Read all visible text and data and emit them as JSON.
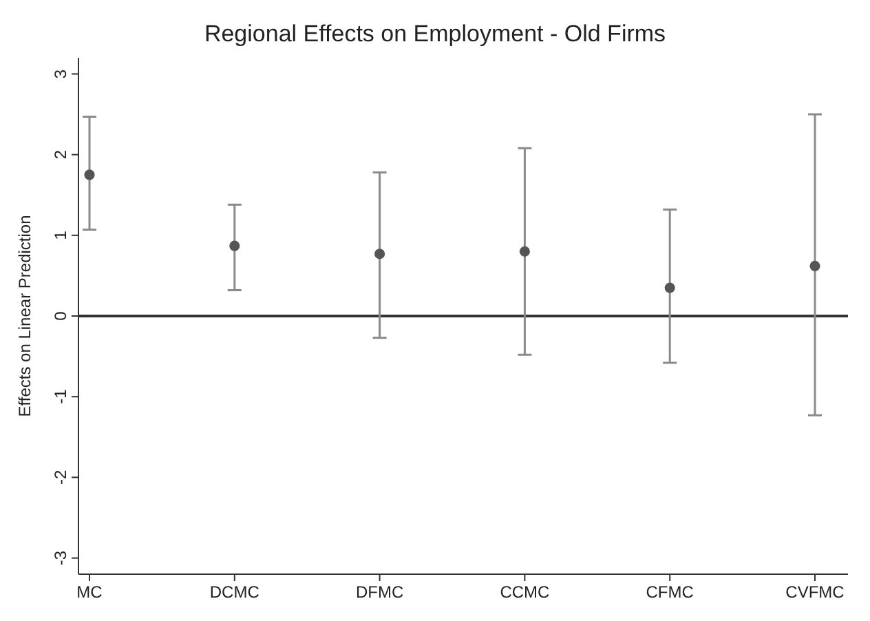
{
  "chart_data": {
    "type": "scatter",
    "title": "Regional Effects on Employment - Old Firms",
    "ylabel": "Effects on Linear Prediction",
    "categories": [
      "MC",
      "DCMC",
      "DFMC",
      "CCMC",
      "CFMC",
      "CVFMC"
    ],
    "series": [
      {
        "color": "#555555",
        "values": [
          1.75,
          0.87,
          0.77,
          0.8,
          0.35,
          0.62
        ],
        "errors": [
          [
            1.07,
            2.47
          ],
          [
            0.32,
            1.38
          ],
          [
            -0.27,
            1.78
          ],
          [
            -0.48,
            2.08
          ],
          [
            -0.58,
            1.32
          ],
          [
            -1.23,
            2.5
          ]
        ]
      }
    ],
    "ylim": [
      -3.2,
      3.2
    ],
    "yticks": [
      -3,
      -2,
      -1,
      0,
      1,
      2,
      3
    ],
    "ref_lines": [
      {
        "axis": "y",
        "value": 0,
        "color": "#333333"
      }
    ],
    "marker": "circle",
    "grid": false
  }
}
